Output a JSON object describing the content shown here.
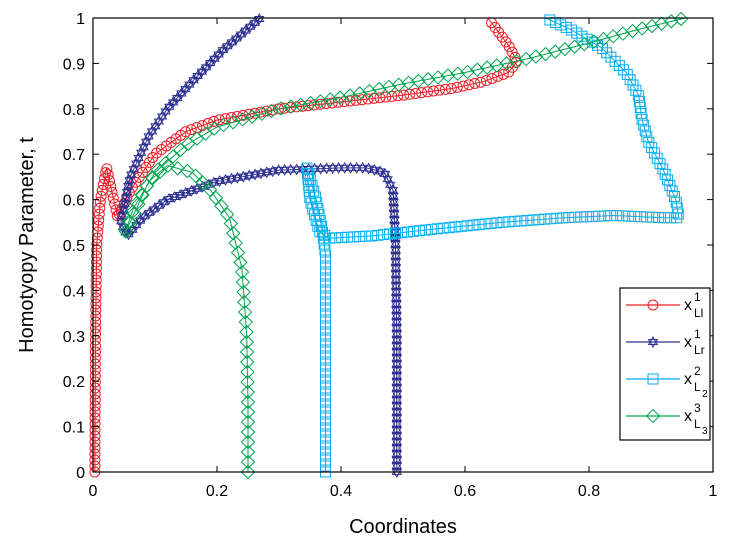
{
  "chart_data": {
    "type": "line",
    "xlabel": "Coordinates",
    "ylabel": "Homotyopy Parameter, t",
    "xlim": [
      0,
      1
    ],
    "ylim": [
      0,
      1
    ],
    "xticks": [
      "0",
      "0.2",
      "0.4",
      "0.6",
      "0.8",
      "1"
    ],
    "yticks": [
      "0",
      "0.1",
      "0.2",
      "0.3",
      "0.4",
      "0.5",
      "0.6",
      "0.7",
      "0.8",
      "0.9",
      "1"
    ],
    "grid": false,
    "legend_position": "right",
    "series": [
      {
        "name": {
          "base": "x",
          "sup": "1",
          "sub": "Ll",
          "subsub": ""
        },
        "color": "#ee1c25",
        "marker": "circle",
        "points": [
          [
            0.003,
            0
          ],
          [
            0.004,
            0.3
          ],
          [
            0.006,
            0.5
          ],
          [
            0.012,
            0.6
          ],
          [
            0.022,
            0.67
          ],
          [
            0.03,
            0.62
          ],
          [
            0.04,
            0.56
          ],
          [
            0.06,
            0.62
          ],
          [
            0.1,
            0.7
          ],
          [
            0.15,
            0.75
          ],
          [
            0.2,
            0.775
          ],
          [
            0.3,
            0.8
          ],
          [
            0.4,
            0.815
          ],
          [
            0.5,
            0.83
          ],
          [
            0.58,
            0.845
          ],
          [
            0.63,
            0.86
          ],
          [
            0.67,
            0.88
          ],
          [
            0.684,
            0.905
          ],
          [
            0.67,
            0.94
          ],
          [
            0.637,
            1.0
          ]
        ]
      },
      {
        "name": {
          "base": "x",
          "sup": "1",
          "sub": "Lr",
          "subsub": ""
        },
        "color": "#2e3192",
        "marker": "star",
        "points": [
          [
            0.49,
            0
          ],
          [
            0.49,
            0.3
          ],
          [
            0.488,
            0.5
          ],
          [
            0.484,
            0.62
          ],
          [
            0.47,
            0.66
          ],
          [
            0.44,
            0.67
          ],
          [
            0.4,
            0.67
          ],
          [
            0.3,
            0.665
          ],
          [
            0.2,
            0.64
          ],
          [
            0.12,
            0.6
          ],
          [
            0.08,
            0.56
          ],
          [
            0.055,
            0.52
          ],
          [
            0.045,
            0.55
          ],
          [
            0.06,
            0.65
          ],
          [
            0.09,
            0.74
          ],
          [
            0.12,
            0.8
          ],
          [
            0.16,
            0.86
          ],
          [
            0.21,
            0.93
          ],
          [
            0.27,
            1.0
          ]
        ]
      },
      {
        "name": {
          "base": "x",
          "sup": "2",
          "sub": "L",
          "subsub": "2"
        },
        "color": "#00aeef",
        "marker": "square",
        "points": [
          [
            0.375,
            0
          ],
          [
            0.375,
            0.3
          ],
          [
            0.375,
            0.48
          ],
          [
            0.37,
            0.53
          ],
          [
            0.36,
            0.6
          ],
          [
            0.345,
            0.67
          ],
          [
            0.35,
            0.6
          ],
          [
            0.365,
            0.53
          ],
          [
            0.38,
            0.515
          ],
          [
            0.45,
            0.52
          ],
          [
            0.55,
            0.535
          ],
          [
            0.66,
            0.55
          ],
          [
            0.76,
            0.56
          ],
          [
            0.84,
            0.565
          ],
          [
            0.92,
            0.56
          ],
          [
            0.945,
            0.56
          ],
          [
            0.94,
            0.6
          ],
          [
            0.92,
            0.665
          ],
          [
            0.895,
            0.73
          ],
          [
            0.885,
            0.78
          ],
          [
            0.88,
            0.83
          ],
          [
            0.86,
            0.88
          ],
          [
            0.82,
            0.935
          ],
          [
            0.77,
            0.975
          ],
          [
            0.73,
            1.0
          ]
        ]
      },
      {
        "name": {
          "base": "x",
          "sup": "3",
          "sub": "L",
          "subsub": "3"
        },
        "color": "#00a650",
        "marker": "diamond",
        "points": [
          [
            0.25,
            0
          ],
          [
            0.25,
            0.15
          ],
          [
            0.248,
            0.3
          ],
          [
            0.24,
            0.45
          ],
          [
            0.22,
            0.56
          ],
          [
            0.19,
            0.62
          ],
          [
            0.16,
            0.66
          ],
          [
            0.12,
            0.675
          ],
          [
            0.09,
            0.64
          ],
          [
            0.07,
            0.58
          ],
          [
            0.05,
            0.52
          ],
          [
            0.065,
            0.58
          ],
          [
            0.1,
            0.66
          ],
          [
            0.15,
            0.72
          ],
          [
            0.2,
            0.76
          ],
          [
            0.3,
            0.8
          ],
          [
            0.4,
            0.825
          ],
          [
            0.5,
            0.855
          ],
          [
            0.6,
            0.88
          ],
          [
            0.7,
            0.91
          ],
          [
            0.8,
            0.945
          ],
          [
            0.88,
            0.975
          ],
          [
            0.955,
            1.0
          ]
        ]
      }
    ]
  }
}
